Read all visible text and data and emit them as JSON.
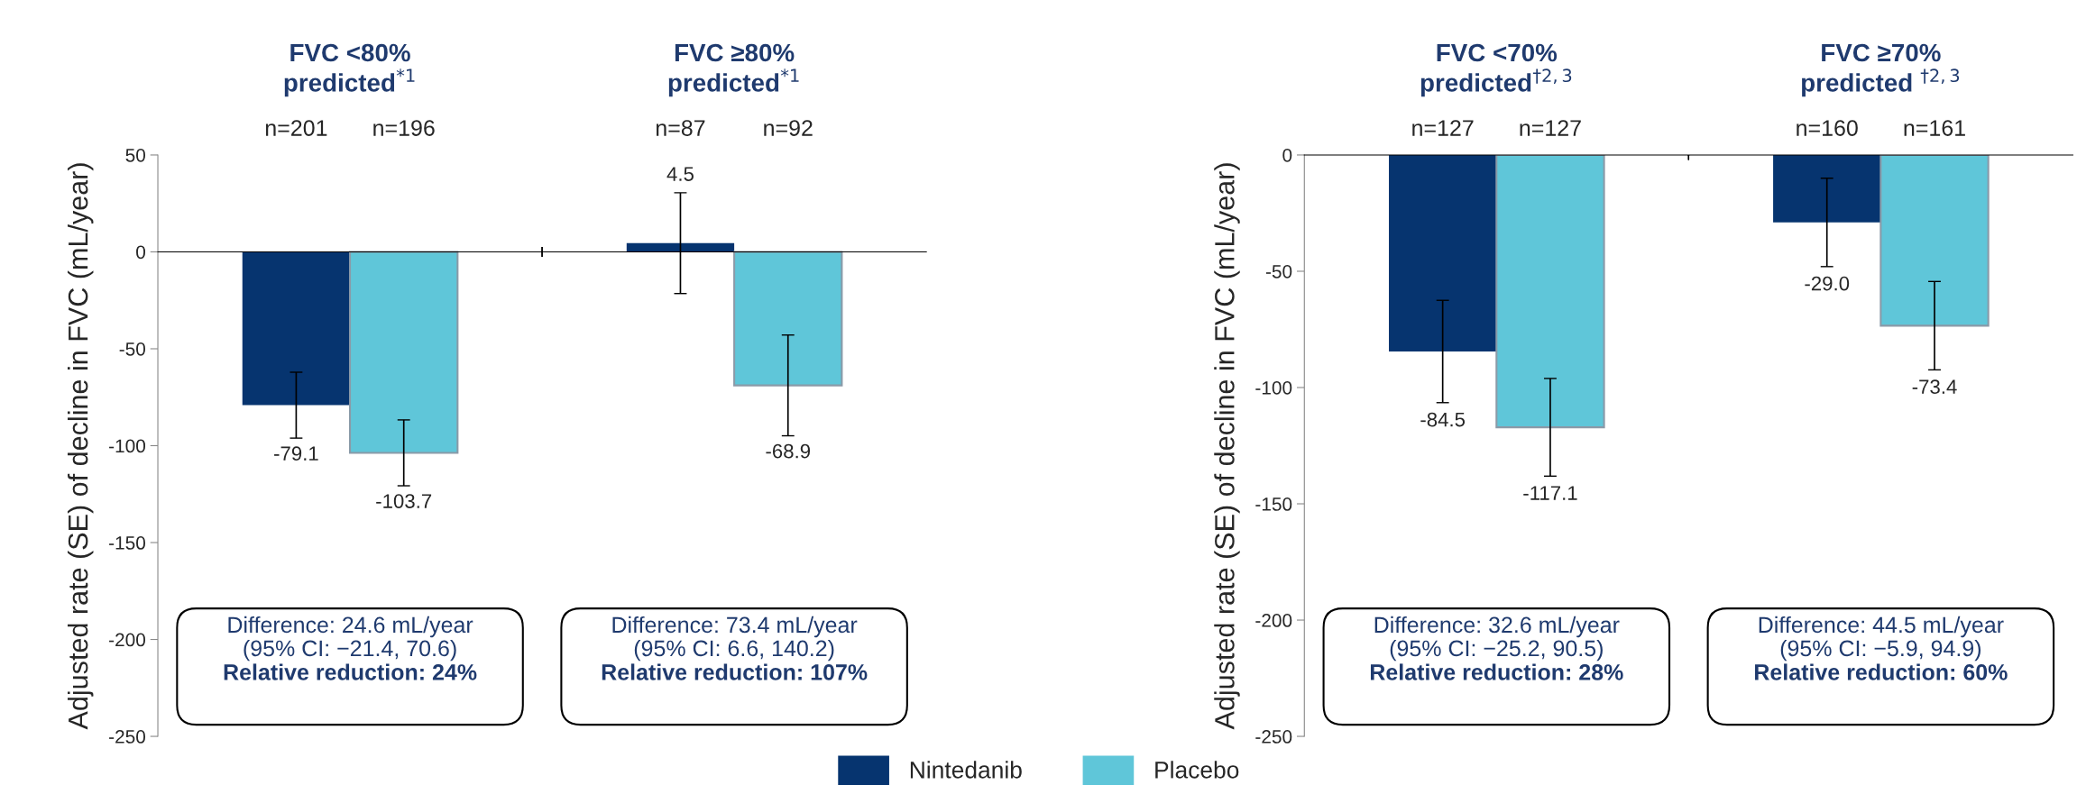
{
  "chart_data": [
    {
      "type": "bar",
      "categories": [
        "FVC <80%\npredicted$^{*1}$",
        "FVC ≥80%\npredicted$^{*1}$"
      ],
      "ylabel": "Adjusted rate (SE) of decline in FVC (mL/year)",
      "ylim": [
        -250,
        50
      ],
      "yticks": [
        -250,
        -200,
        -150,
        -100,
        -50,
        0,
        50
      ],
      "legend": "bottom",
      "series": [
        {
          "name": "Nintedanib",
          "color": "#06346f",
          "values": [
            -79.1,
            4.5
          ],
          "errors": [
            17,
            26
          ],
          "value_labels": [
            "-79.1",
            "4.5"
          ]
        },
        {
          "name": "Placebo",
          "color": "#5fc6d9",
          "values": [
            -103.7,
            -68.9
          ],
          "errors": [
            17,
            26
          ],
          "value_labels": [
            "-103.7",
            "-68.9"
          ]
        }
      ],
      "annotations": [
        "n=201",
        "n=196",
        "n=87",
        "n=92",
        "Difference: 24.6 mL/year\n(95% CI: −21.4, 70.6)",
        "Relative reduction: 24%",
        "Difference: 73.4 mL/year\n(95% CI: 6.6, 140.2)",
        "Relative reduction: 107%"
      ]
    },
    {
      "type": "bar",
      "categories": [
        "FVC <70%\npredicted$^{†2,3}$",
        "FVC ≥70%\npredicted $^{†2,3}$"
      ],
      "ylabel": "Adjusted rate (SE) of decline in FVC (mL/year)",
      "ylim": [
        -250,
        0
      ],
      "yticks": [
        -250,
        -200,
        -150,
        -100,
        -50,
        0
      ],
      "legend": "bottom",
      "series": [
        {
          "name": "Nintedanib",
          "color": "#06346f",
          "values": [
            -84.5,
            -29.0
          ],
          "errors": [
            22,
            19
          ],
          "value_labels": [
            "-84.5",
            "-29.0"
          ]
        },
        {
          "name": "Placebo",
          "color": "#5fc6d9",
          "values": [
            -117.1,
            -73.4
          ],
          "errors": [
            21,
            19
          ],
          "value_labels": [
            "-117.1",
            "-73.4"
          ]
        }
      ],
      "annotations": [
        "n=127",
        "n=127",
        "n=160",
        "n=161",
        "Difference: 32.6 mL/year\n(95% CI: −25.2, 90.5)",
        "Relative reduction: 28%",
        "Difference: 44.5 mL/year\n(95% CI: −5.9, 94.9)",
        "Relative reduction: 60%"
      ]
    }
  ]
}
